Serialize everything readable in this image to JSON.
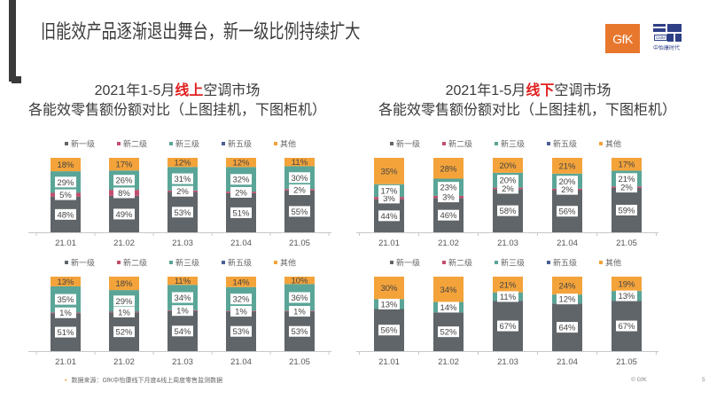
{
  "header": {
    "title": "旧能效产品逐渐退出舞台，新一级比例持续扩大",
    "logo_gfk": "GfK",
    "logo_cmm": "CMM",
    "logo_cmm_cn": "中怡康时代"
  },
  "panels": [
    {
      "title_prefix": "2021年1-5月",
      "title_highlight": "线上",
      "title_suffix": "空调市场",
      "subtitle": "各能效零售额份额对比（上图挂机，下图柜机）"
    },
    {
      "title_prefix": "2021年1-5月",
      "title_highlight": "线下",
      "title_suffix": "空调市场",
      "subtitle": "各能效零售额份额对比（上图挂机，下图柜机）"
    }
  ],
  "colors": {
    "新一级": "#5f6569",
    "新二级": "#c24e6e",
    "新三级": "#5aa597",
    "新五级": "#4b5f95",
    "其他": "#f3a33a",
    "highlight": "#e02020"
  },
  "chart_data": [
    {
      "type": "bar",
      "stacked": true,
      "percent": true,
      "categories": [
        "21.01",
        "21.02",
        "21.03",
        "21.04",
        "21.05"
      ],
      "legend": [
        "新一级",
        "新二级",
        "新三级",
        "新五级",
        "其他"
      ],
      "legend_position": "top",
      "series": [
        {
          "name": "新一级",
          "values": [
            48,
            49,
            53,
            51,
            55
          ]
        },
        {
          "name": "新二级",
          "values": [
            5,
            8,
            2,
            2,
            2
          ]
        },
        {
          "name": "新三级",
          "values": [
            29,
            26,
            31,
            32,
            30
          ]
        },
        {
          "name": "新五级",
          "values": [
            null,
            null,
            null,
            null,
            null
          ]
        },
        {
          "name": "其他",
          "values": [
            18,
            17,
            12,
            12,
            11
          ]
        }
      ]
    },
    {
      "type": "bar",
      "stacked": true,
      "percent": true,
      "categories": [
        "21.01",
        "21.02",
        "21.03",
        "21.04",
        "21.05"
      ],
      "legend": [
        "新一级",
        "新二级",
        "新三级",
        "新五级",
        "其他"
      ],
      "legend_position": "top",
      "series": [
        {
          "name": "新一级",
          "values": [
            51,
            52,
            54,
            53,
            53
          ]
        },
        {
          "name": "新二级",
          "values": [
            1,
            1,
            1,
            1,
            1
          ]
        },
        {
          "name": "新三级",
          "values": [
            35,
            29,
            34,
            32,
            36
          ]
        },
        {
          "name": "新五级",
          "values": [
            null,
            null,
            null,
            null,
            null
          ]
        },
        {
          "name": "其他",
          "values": [
            13,
            18,
            11,
            14,
            10
          ]
        }
      ]
    },
    {
      "type": "bar",
      "stacked": true,
      "percent": true,
      "categories": [
        "21.01",
        "21.02",
        "21.03",
        "21.04",
        "21.05"
      ],
      "legend": [
        "新一级",
        "新二级",
        "新三级",
        "新五级",
        "其他"
      ],
      "legend_position": "top",
      "series": [
        {
          "name": "新一级",
          "values": [
            44,
            46,
            58,
            56,
            59
          ]
        },
        {
          "name": "新二级",
          "values": [
            3,
            3,
            2,
            2,
            2
          ]
        },
        {
          "name": "新三级",
          "values": [
            17,
            23,
            20,
            20,
            21
          ]
        },
        {
          "name": "新五级",
          "values": [
            null,
            null,
            null,
            null,
            null
          ]
        },
        {
          "name": "其他",
          "values": [
            35,
            28,
            20,
            21,
            17
          ]
        }
      ]
    },
    {
      "type": "bar",
      "stacked": true,
      "percent": true,
      "categories": [
        "21.01",
        "21.02",
        "21.03",
        "21.04",
        "21.05"
      ],
      "legend": [
        "新一级",
        "新二级",
        "新三级",
        "新五级",
        "其他"
      ],
      "legend_position": "top",
      "series": [
        {
          "name": "新一级",
          "values": [
            56,
            52,
            67,
            64,
            67
          ]
        },
        {
          "name": "新二级",
          "values": [
            null,
            null,
            null,
            null,
            null
          ]
        },
        {
          "name": "新三级",
          "values": [
            13,
            14,
            11,
            12,
            13
          ]
        },
        {
          "name": "新五级",
          "values": [
            null,
            null,
            null,
            null,
            null
          ]
        },
        {
          "name": "其他",
          "values": [
            30,
            34,
            21,
            24,
            19
          ]
        }
      ]
    }
  ],
  "footer": {
    "bullet": "•",
    "source": "数据来源：GfK中怡康线下月度&线上周度零售监测数据",
    "copyright": "© GfK",
    "page": "5"
  }
}
